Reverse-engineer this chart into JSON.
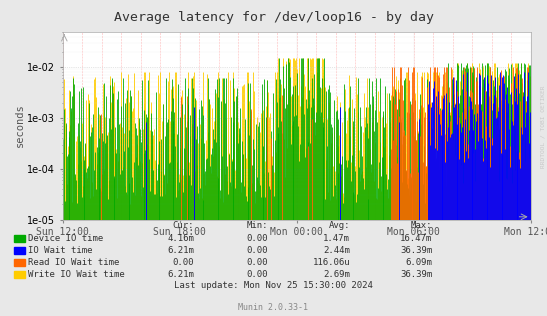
{
  "title": "Average latency for /dev/loop16 - by day",
  "ylabel": "seconds",
  "watermark": "RRDTOOL / TOBI OETIKER",
  "footer": "Munin 2.0.33-1",
  "last_update": "Last update: Mon Nov 25 15:30:00 2024",
  "background_color": "#e8e8e8",
  "plot_bg_color": "#ffffff",
  "dashed_line_color": "#ff9999",
  "dotted_grid_color": "#cccccc",
  "yticks": [
    1e-05,
    0.0001,
    0.001,
    0.01
  ],
  "xtick_labels": [
    "Sun 12:00",
    "Sun 18:00",
    "Mon 00:00",
    "Mon 06:00",
    "Mon 12:00"
  ],
  "legend": [
    {
      "label": "Device IO time",
      "color": "#00aa00"
    },
    {
      "label": "IO Wait time",
      "color": "#0000ff"
    },
    {
      "label": "Read IO Wait time",
      "color": "#ff6600"
    },
    {
      "label": "Write IO Wait time",
      "color": "#ffcc00"
    }
  ],
  "stats": [
    {
      "cur": "4.16m",
      "min": "0.00",
      "avg": "1.47m",
      "max": "16.47m"
    },
    {
      "cur": "6.21m",
      "min": "0.00",
      "avg": "2.44m",
      "max": "36.39m"
    },
    {
      "cur": "0.00",
      "min": "0.00",
      "avg": "116.06u",
      "max": "6.09m"
    },
    {
      "cur": "6.21m",
      "min": "0.00",
      "avg": "2.69m",
      "max": "36.39m"
    }
  ],
  "seed": 42,
  "n_points": 500
}
